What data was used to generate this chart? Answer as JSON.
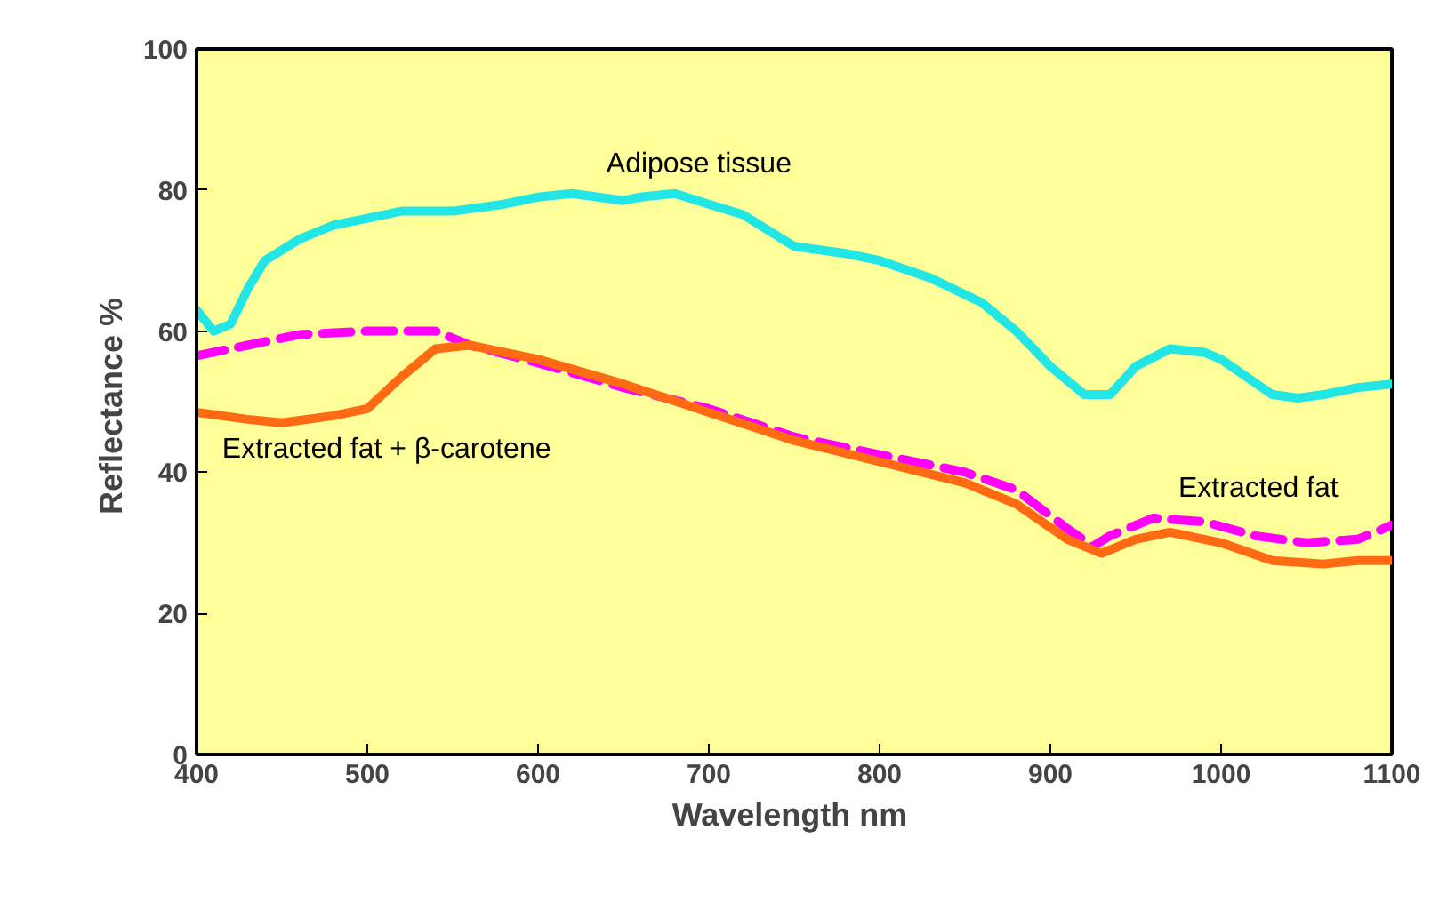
{
  "chart_data": {
    "type": "line",
    "xlabel": "Wavelength  nm",
    "ylabel": "Reflectance  %",
    "xlim": [
      400,
      1100
    ],
    "xticks": [
      400,
      500,
      600,
      700,
      800,
      900,
      1000,
      1100
    ],
    "ylim": [
      0,
      100
    ],
    "yticks": [
      0,
      20,
      40,
      60,
      80,
      100
    ],
    "grid": false,
    "legend": false,
    "marker": "none",
    "series": [
      {
        "name": "Adipose tissue",
        "color": "#22e5e5",
        "line_style": "solid",
        "x": [
          400,
          410,
          420,
          430,
          440,
          460,
          480,
          500,
          520,
          550,
          580,
          600,
          620,
          650,
          660,
          680,
          700,
          720,
          750,
          780,
          800,
          830,
          860,
          880,
          900,
          920,
          935,
          950,
          970,
          990,
          1000,
          1030,
          1045,
          1060,
          1080,
          1100
        ],
        "values": [
          63,
          60,
          61,
          66,
          70,
          73,
          75,
          76,
          77,
          77,
          78,
          79,
          79.5,
          78.5,
          79,
          79.5,
          78,
          76.5,
          72,
          71,
          70,
          67.5,
          64,
          60,
          55,
          51,
          51,
          55,
          57.5,
          57,
          56,
          51,
          50.5,
          51,
          52,
          52.5
        ]
      },
      {
        "name": "Extracted fat",
        "color": "#ff00ff",
        "line_style": "dashed",
        "x": [
          400,
          430,
          460,
          500,
          540,
          560,
          600,
          650,
          700,
          750,
          800,
          850,
          880,
          910,
          925,
          935,
          960,
          990,
          1020,
          1050,
          1080,
          1100
        ],
        "values": [
          56.5,
          58,
          59.5,
          60,
          60,
          58,
          55.5,
          52,
          49,
          45,
          42.5,
          40,
          37.5,
          32,
          29.5,
          31,
          33.5,
          33,
          31,
          30,
          30.5,
          32.5
        ]
      },
      {
        "name": "Extracted fat + β-carotene",
        "color": "#ff6a13",
        "line_style": "solid",
        "x": [
          400,
          430,
          450,
          480,
          500,
          520,
          540,
          560,
          600,
          650,
          700,
          750,
          800,
          850,
          880,
          910,
          930,
          950,
          970,
          1000,
          1030,
          1060,
          1080,
          1100
        ],
        "values": [
          48.5,
          47.5,
          47,
          48,
          49,
          53.5,
          57.5,
          58,
          56,
          52.5,
          48.5,
          44.5,
          41.5,
          38.5,
          35.5,
          30.5,
          28.5,
          30.5,
          31.5,
          30,
          27.5,
          27,
          27.5,
          27.5
        ]
      }
    ]
  }
}
